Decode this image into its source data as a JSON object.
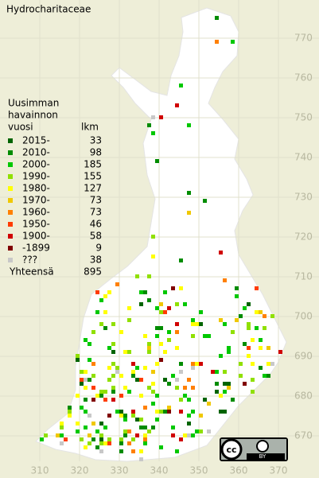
{
  "title": "Hydrocharitaceae",
  "legend": {
    "heading": [
      "Uusimman",
      "havainnon",
      "vuosi"
    ],
    "count_heading": "lkm",
    "entries": [
      {
        "label": "2015-",
        "count": 33,
        "color": "#006400"
      },
      {
        "label": "2010-",
        "count": 98,
        "color": "#008c00"
      },
      {
        "label": "2000-",
        "count": 185,
        "color": "#00c800"
      },
      {
        "label": "1990-",
        "count": 155,
        "color": "#90e000"
      },
      {
        "label": "1980-",
        "count": 127,
        "color": "#ffff00"
      },
      {
        "label": "1970-",
        "count": 73,
        "color": "#f0c800"
      },
      {
        "label": "1960-",
        "count": 73,
        "color": "#ff8000"
      },
      {
        "label": "1950-",
        "count": 46,
        "color": "#ff3c00"
      },
      {
        "label": "1900-",
        "count": 58,
        "color": "#d00000"
      },
      {
        "label": "-1899",
        "count": 9,
        "color": "#800000"
      },
      {
        "label": "???",
        "count": 38,
        "color": "#c8c8c8"
      }
    ],
    "total_label": "Yhteensä",
    "total": 895
  },
  "map": {
    "xticks": [
      310,
      320,
      330,
      340,
      350,
      360,
      370
    ],
    "yticks": [
      670,
      680,
      690,
      700,
      710,
      720,
      730,
      740,
      750,
      760,
      770
    ]
  },
  "license": {
    "cc": "cc",
    "by": "BY"
  }
}
